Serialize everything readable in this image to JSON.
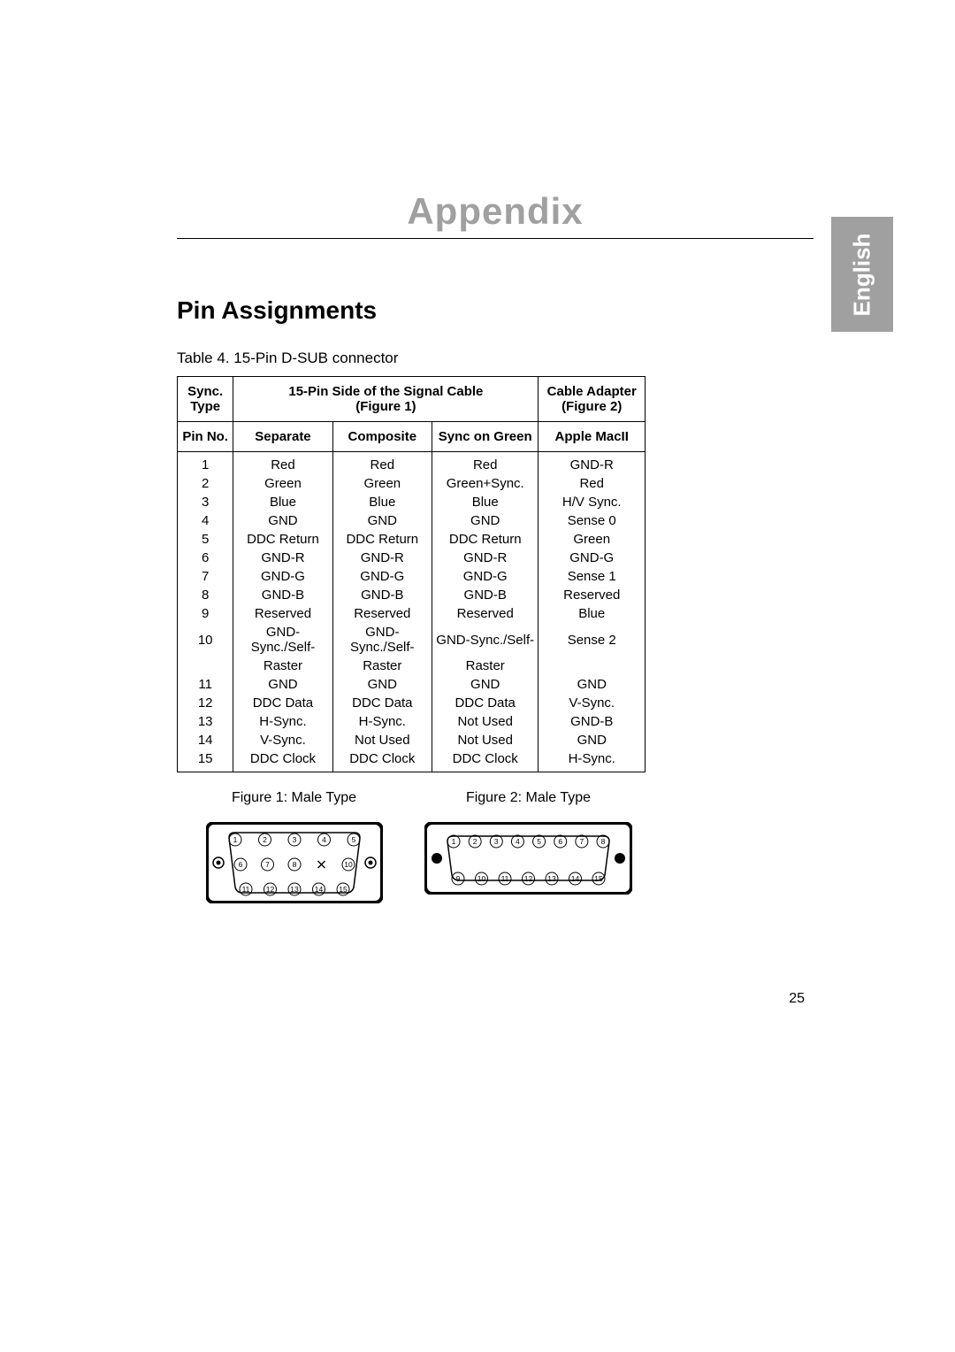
{
  "header": {
    "appendix": "Appendix",
    "sideTab": "English"
  },
  "section": {
    "title": "Pin Assignments",
    "tableCaption": "Table 4.  15-Pin D-SUB connector"
  },
  "table": {
    "head1": {
      "syncType": "Sync.<br>Type",
      "signalCable": "15-Pin Side of the Signal Cable<br>(Figure 1)",
      "cableAdapter": "Cable Adapter<br>(Figure 2)"
    },
    "head2": {
      "pinNo": "Pin No.",
      "separate": "Separate",
      "composite": "Composite",
      "syncGreen": "Sync on Green",
      "apple": "Apple MacII"
    },
    "rows": [
      [
        "1",
        "Red",
        "Red",
        "Red",
        "GND-R"
      ],
      [
        "2",
        "Green",
        "Green",
        "Green+Sync.",
        "Red"
      ],
      [
        "3",
        "Blue",
        "Blue",
        "Blue",
        "H/V Sync."
      ],
      [
        "4",
        "GND",
        "GND",
        "GND",
        "Sense 0"
      ],
      [
        "5",
        "DDC Return",
        "DDC Return",
        "DDC Return",
        "Green"
      ],
      [
        "6",
        "GND-R",
        "GND-R",
        "GND-R",
        "GND-G"
      ],
      [
        "7",
        "GND-G",
        "GND-G",
        "GND-G",
        "Sense 1"
      ],
      [
        "8",
        "GND-B",
        "GND-B",
        "GND-B",
        "Reserved"
      ],
      [
        "9",
        "Reserved",
        "Reserved",
        "Reserved",
        "Blue"
      ],
      [
        "10",
        "GND-Sync./Self-Raster",
        "GND-Sync./Self-Raster",
        "GND-Sync./Self-Raster",
        "Sense 2"
      ],
      [
        "11",
        "GND",
        "GND",
        "GND",
        "GND"
      ],
      [
        "12",
        "DDC Data",
        "DDC Data",
        "DDC Data",
        "V-Sync."
      ],
      [
        "13",
        "H-Sync.",
        "H-Sync.",
        "Not Used",
        "GND-B"
      ],
      [
        "14",
        "V-Sync.",
        "Not Used",
        "Not Used",
        "GND"
      ],
      [
        "15",
        "DDC Clock",
        "DDC Clock",
        "DDC Clock",
        "H-Sync."
      ]
    ]
  },
  "figures": {
    "fig1_caption": "Figure 1: Male Type",
    "fig2_caption": "Figure 2: Male Type",
    "connector1": {
      "outer_w": 200,
      "outer_h": 92,
      "rows": [
        [
          1,
          2,
          3,
          4,
          5
        ],
        [
          6,
          7,
          8,
          "x",
          10
        ],
        [
          11,
          12,
          13,
          14,
          15
        ]
      ]
    },
    "connector2": {
      "outer_w": 235,
      "outer_h": 82,
      "rows": [
        [
          1,
          2,
          3,
          4,
          5,
          6,
          7,
          8
        ],
        [
          9,
          10,
          11,
          12,
          13,
          14,
          15
        ]
      ]
    }
  },
  "pageNumber": "25",
  "style": {
    "titleColor": "#a0a0a0",
    "tabBg": "#a0a0a0",
    "tabFg": "#ffffff",
    "border": "#000000",
    "text": "#000000",
    "bodyFontSize": 15,
    "titleFontSize": 42,
    "sectionFontSize": 28
  }
}
